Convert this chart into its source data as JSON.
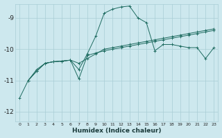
{
  "xlabel": "Humidex (Indice chaleur)",
  "background_color": "#cde8ee",
  "grid_color": "#a8cdd5",
  "line_color": "#1e6b60",
  "xlim": [
    -0.5,
    23.5
  ],
  "ylim": [
    -12.3,
    -8.55
  ],
  "yticks": [
    -12,
    -11,
    -10,
    -9
  ],
  "xticks": [
    0,
    1,
    2,
    3,
    4,
    5,
    6,
    7,
    8,
    9,
    10,
    11,
    12,
    13,
    14,
    15,
    16,
    17,
    18,
    19,
    20,
    21,
    22,
    23
  ],
  "line1": [
    null,
    -11.0,
    -10.7,
    -10.45,
    -10.4,
    -10.38,
    -10.35,
    -10.95,
    -10.2,
    -10.12,
    -10.05,
    -10.0,
    -9.95,
    -9.9,
    -9.85,
    -9.8,
    -9.75,
    -9.7,
    -9.65,
    -9.6,
    -9.55,
    -9.5,
    -9.45,
    -9.4
  ],
  "line2": [
    null,
    -11.0,
    -10.65,
    -10.45,
    -10.4,
    -10.38,
    -10.35,
    -10.45,
    -10.3,
    -10.15,
    -10.0,
    -9.95,
    -9.9,
    -9.85,
    -9.8,
    -9.75,
    -9.7,
    -9.65,
    -9.6,
    -9.55,
    -9.5,
    -9.45,
    -9.4,
    -9.35
  ],
  "line3": [
    -11.55,
    -11.0,
    -10.7,
    -10.45,
    -10.4,
    -10.38,
    -10.35,
    -10.65,
    -10.15,
    -9.58,
    -8.85,
    -8.72,
    -8.65,
    -8.62,
    -9.0,
    -9.15,
    -10.05,
    -9.85,
    -9.85,
    -9.9,
    -9.95,
    -9.95,
    -10.3,
    -9.95
  ]
}
